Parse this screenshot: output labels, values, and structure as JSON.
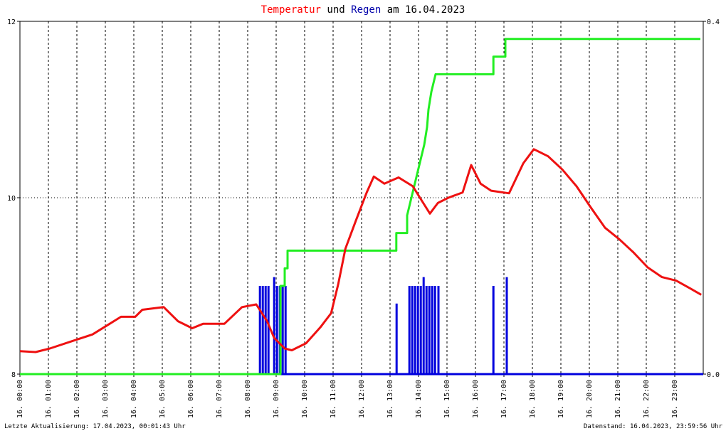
{
  "chart_data": {
    "type": "line",
    "title": [
      {
        "text": "Temperatur",
        "color": "#ff0000"
      },
      {
        "text": "und",
        "color": "#000000"
      },
      {
        "text": "Regen",
        "color": "#0000aa"
      },
      {
        "text": "am 16.04.2023",
        "color": "#000000"
      }
    ],
    "footer_left": "Letzte Aktualisierung: 17.04.2023, 00:01:43 Uhr",
    "footer_right": "Datenstand: 16.04.2023, 23:59:56 Uhr",
    "xlim": [
      0,
      24
    ],
    "xticks": [
      {
        "value": 0,
        "label": "16. 00:00"
      },
      {
        "value": 1,
        "label": "16. 01:00"
      },
      {
        "value": 2,
        "label": "16. 02:00"
      },
      {
        "value": 3,
        "label": "16. 03:00"
      },
      {
        "value": 4,
        "label": "16. 04:00"
      },
      {
        "value": 5,
        "label": "16. 05:00"
      },
      {
        "value": 6,
        "label": "16. 06:00"
      },
      {
        "value": 7,
        "label": "16. 07:00"
      },
      {
        "value": 8,
        "label": "16. 08:00"
      },
      {
        "value": 9,
        "label": "16. 09:00"
      },
      {
        "value": 10,
        "label": "16. 10:00"
      },
      {
        "value": 11,
        "label": "16. 11:00"
      },
      {
        "value": 12,
        "label": "16. 12:00"
      },
      {
        "value": 13,
        "label": "16. 13:00"
      },
      {
        "value": 14,
        "label": "16. 14:00"
      },
      {
        "value": 15,
        "label": "16. 15:00"
      },
      {
        "value": 16,
        "label": "16. 16:00"
      },
      {
        "value": 17,
        "label": "16. 17:00"
      },
      {
        "value": 18,
        "label": "16. 18:00"
      },
      {
        "value": 19,
        "label": "16. 19:00"
      },
      {
        "value": 20,
        "label": "16. 20:00"
      },
      {
        "value": 21,
        "label": "16. 21:00"
      },
      {
        "value": 22,
        "label": "16. 22:00"
      },
      {
        "value": 23,
        "label": "16. 23:00"
      }
    ],
    "ylim": [
      8,
      12
    ],
    "yticks": [
      8,
      10,
      12
    ],
    "y2lim": [
      0,
      0.4
    ],
    "y2ticks": [
      {
        "value": 0,
        "label": "0.0"
      },
      0.4
    ],
    "grid": true,
    "series": [
      {
        "type": "bar",
        "axis": "y2",
        "color": "#0000dd",
        "x": [
          8.43,
          8.53,
          8.63,
          8.73,
          8.93,
          9.03,
          9.13,
          9.23,
          9.33,
          13.23,
          13.68,
          13.78,
          13.88,
          13.98,
          14.08,
          14.18,
          14.28,
          14.38,
          14.48,
          14.58,
          14.7,
          16.63,
          17.1
        ],
        "values": [
          0.1,
          0.1,
          0.1,
          0.1,
          0.11,
          0.1,
          0.1,
          0.1,
          0.1,
          0.08,
          0.1,
          0.1,
          0.1,
          0.1,
          0.1,
          0.11,
          0.1,
          0.1,
          0.1,
          0.1,
          0.1,
          0.1,
          0.11
        ]
      },
      {
        "type": "line",
        "axis": "y2",
        "color": "#22ee22",
        "x": [
          0,
          9.15,
          9.15,
          9.3,
          9.3,
          9.4,
          9.4,
          13.22,
          13.22,
          13.6,
          13.6,
          13.75,
          13.9,
          14.05,
          14.2,
          14.3,
          14.35,
          14.45,
          14.6,
          16.63,
          16.63,
          17.05,
          17.05,
          23.9
        ],
        "values": [
          0,
          0,
          0.1,
          0.1,
          0.12,
          0.12,
          0.14,
          0.14,
          0.16,
          0.16,
          0.18,
          0.2,
          0.22,
          0.24,
          0.26,
          0.28,
          0.3,
          0.32,
          0.34,
          0.34,
          0.36,
          0.36,
          0.38,
          0.38
        ]
      },
      {
        "type": "line",
        "color": "#ee1111",
        "x": [
          0,
          0.55,
          1.05,
          1.8,
          2.55,
          3.05,
          3.55,
          4.05,
          4.3,
          5.05,
          5.55,
          6.05,
          6.43,
          7.18,
          7.8,
          8.3,
          8.68,
          8.93,
          9.3,
          9.55,
          10.05,
          10.55,
          10.93,
          11.18,
          11.43,
          11.8,
          12.18,
          12.43,
          12.8,
          13.3,
          13.8,
          14.05,
          14.4,
          14.68,
          15.05,
          15.55,
          15.85,
          16.18,
          16.55,
          17.18,
          17.68,
          18.05,
          18.55,
          19.05,
          19.55,
          20.05,
          20.55,
          21.05,
          21.55,
          22.05,
          22.55,
          23.05,
          23.55,
          23.93
        ],
        "values": [
          8.26,
          8.25,
          8.29,
          8.37,
          8.45,
          8.55,
          8.65,
          8.65,
          8.73,
          8.76,
          8.6,
          8.52,
          8.57,
          8.57,
          8.76,
          8.79,
          8.6,
          8.41,
          8.29,
          8.27,
          8.35,
          8.53,
          8.69,
          9.02,
          9.42,
          9.74,
          10.06,
          10.24,
          10.16,
          10.23,
          10.13,
          10.0,
          9.82,
          9.94,
          10.0,
          10.06,
          10.37,
          10.16,
          10.08,
          10.05,
          10.39,
          10.55,
          10.47,
          10.32,
          10.13,
          9.89,
          9.66,
          9.53,
          9.38,
          9.21,
          9.1,
          9.06,
          8.97,
          8.9
        ]
      }
    ]
  }
}
